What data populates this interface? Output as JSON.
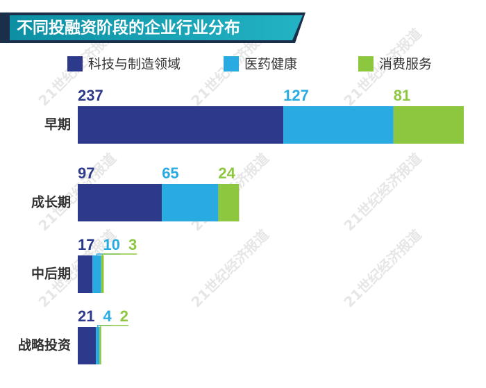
{
  "chart_data": {
    "type": "stacked_bar_horizontal",
    "title": "不同投融资阶段的企业行业分布",
    "watermark": "21世纪经济报道",
    "categories": [
      "早期",
      "成长期",
      "中后期",
      "战略投资"
    ],
    "series": [
      {
        "name": "科技与制造领域",
        "color": "#2d3a8c",
        "values": [
          237,
          97,
          17,
          21
        ]
      },
      {
        "name": "医药健康",
        "color": "#29abe2",
        "values": [
          127,
          65,
          10,
          4
        ]
      },
      {
        "name": "消费服务",
        "color": "#8dc63f",
        "values": [
          81,
          24,
          3,
          2
        ]
      }
    ]
  }
}
